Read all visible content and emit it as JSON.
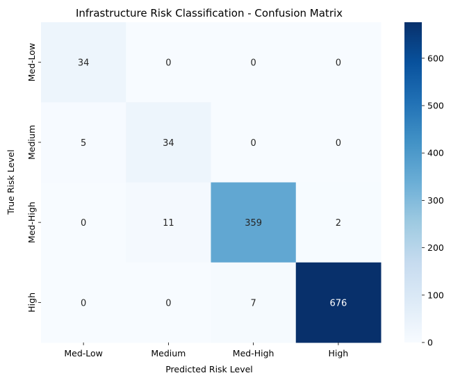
{
  "chart_data": {
    "type": "heatmap",
    "title": "Infrastructure Risk Classification - Confusion Matrix",
    "xlabel": "Predicted Risk Level",
    "ylabel": "True Risk Level",
    "x_categories": [
      "Med-Low",
      "Medium",
      "Med-High",
      "High"
    ],
    "y_categories": [
      "Med-Low",
      "Medium",
      "Med-High",
      "High"
    ],
    "matrix": [
      [
        34,
        0,
        0,
        0
      ],
      [
        5,
        34,
        0,
        0
      ],
      [
        0,
        11,
        359,
        2
      ],
      [
        0,
        0,
        7,
        676
      ]
    ],
    "colormap": "Blues",
    "colorbar": {
      "min": 0,
      "max": 676,
      "ticks": [
        0,
        100,
        200,
        300,
        400,
        500,
        600
      ]
    },
    "annotations": true
  }
}
